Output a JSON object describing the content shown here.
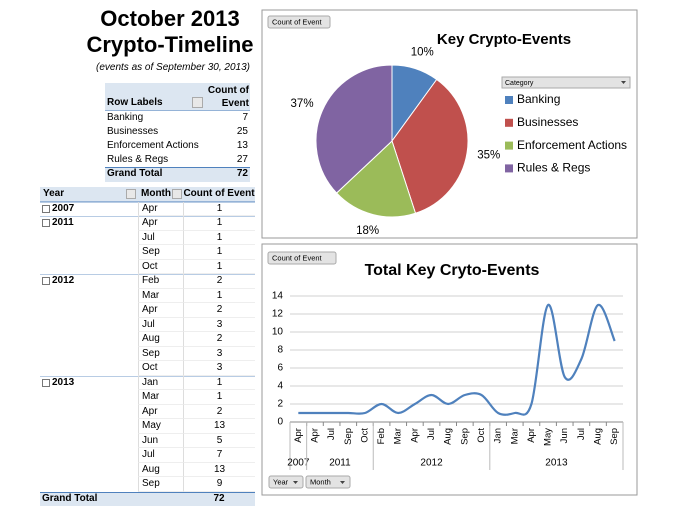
{
  "header": {
    "title_lines": [
      "October 2013",
      "Crypto-Timeline"
    ],
    "subtitle": "(events as of September 30, 2013)"
  },
  "category_table": {
    "columns": [
      "Row Labels",
      "Count of Event"
    ],
    "rows": [
      [
        "Banking",
        7
      ],
      [
        "Businesses",
        25
      ],
      [
        "Enforcement Actions",
        13
      ],
      [
        "Rules & Regs",
        27
      ]
    ],
    "total": [
      "Grand Total",
      72
    ]
  },
  "timeline_table": {
    "columns": [
      "Year",
      "Month",
      "Count of Event"
    ],
    "groups": [
      {
        "year": "2007",
        "rows": [
          [
            "Apr",
            1
          ]
        ]
      },
      {
        "year": "2011",
        "rows": [
          [
            "Apr",
            1
          ],
          [
            "Jul",
            1
          ],
          [
            "Sep",
            1
          ],
          [
            "Oct",
            1
          ]
        ]
      },
      {
        "year": "2012",
        "rows": [
          [
            "Feb",
            2
          ],
          [
            "Mar",
            1
          ],
          [
            "Apr",
            2
          ],
          [
            "Jul",
            3
          ],
          [
            "Aug",
            2
          ],
          [
            "Sep",
            3
          ],
          [
            "Oct",
            3
          ]
        ]
      },
      {
        "year": "2013",
        "rows": [
          [
            "Jan",
            1
          ],
          [
            "Mar",
            1
          ],
          [
            "Apr",
            2
          ],
          [
            "May",
            13
          ],
          [
            "Jun",
            5
          ],
          [
            "Jul",
            7
          ],
          [
            "Aug",
            13
          ],
          [
            "Sep",
            9
          ]
        ]
      }
    ],
    "total": [
      "Grand Total",
      72
    ]
  },
  "chart_data": [
    {
      "type": "pie",
      "title": "Key Crypto-Events",
      "field_button": "Count of Event",
      "legend_title": "Category",
      "legend": "right",
      "categories": [
        "Banking",
        "Businesses",
        "Enforcement Actions",
        "Rules & Regs"
      ],
      "values": [
        10,
        35,
        18,
        37
      ],
      "value_labels": [
        "10%",
        "35%",
        "18%",
        "37%"
      ],
      "colors": [
        "#4f81bd",
        "#c0504d",
        "#9bbb59",
        "#8064a2"
      ]
    },
    {
      "type": "line",
      "title": "Total Key Cryto-Events",
      "field_button": "Count of Event",
      "axis_buttons": [
        "Year",
        "Month"
      ],
      "categories": [
        "Apr",
        "Apr",
        "Jul",
        "Sep",
        "Oct",
        "Feb",
        "Mar",
        "Apr",
        "Jul",
        "Aug",
        "Sep",
        "Oct",
        "Jan",
        "Mar",
        "Apr",
        "May",
        "Jun",
        "Jul",
        "Aug",
        "Sep"
      ],
      "year_labels": [
        "2007",
        "2011",
        null,
        null,
        null,
        "2012",
        null,
        null,
        null,
        null,
        null,
        null,
        "2013",
        null,
        null,
        null,
        null,
        null,
        null,
        null
      ],
      "series": [
        {
          "name": "Total",
          "color": "#4f81bd",
          "values": [
            1,
            1,
            1,
            1,
            1,
            2,
            1,
            2,
            3,
            2,
            3,
            3,
            1,
            1,
            2,
            13,
            5,
            7,
            13,
            9
          ]
        }
      ],
      "ylim": [
        0,
        14
      ],
      "yticks": [
        0,
        2,
        4,
        6,
        8,
        10,
        12,
        14
      ],
      "grid": true,
      "smooth": true
    }
  ]
}
